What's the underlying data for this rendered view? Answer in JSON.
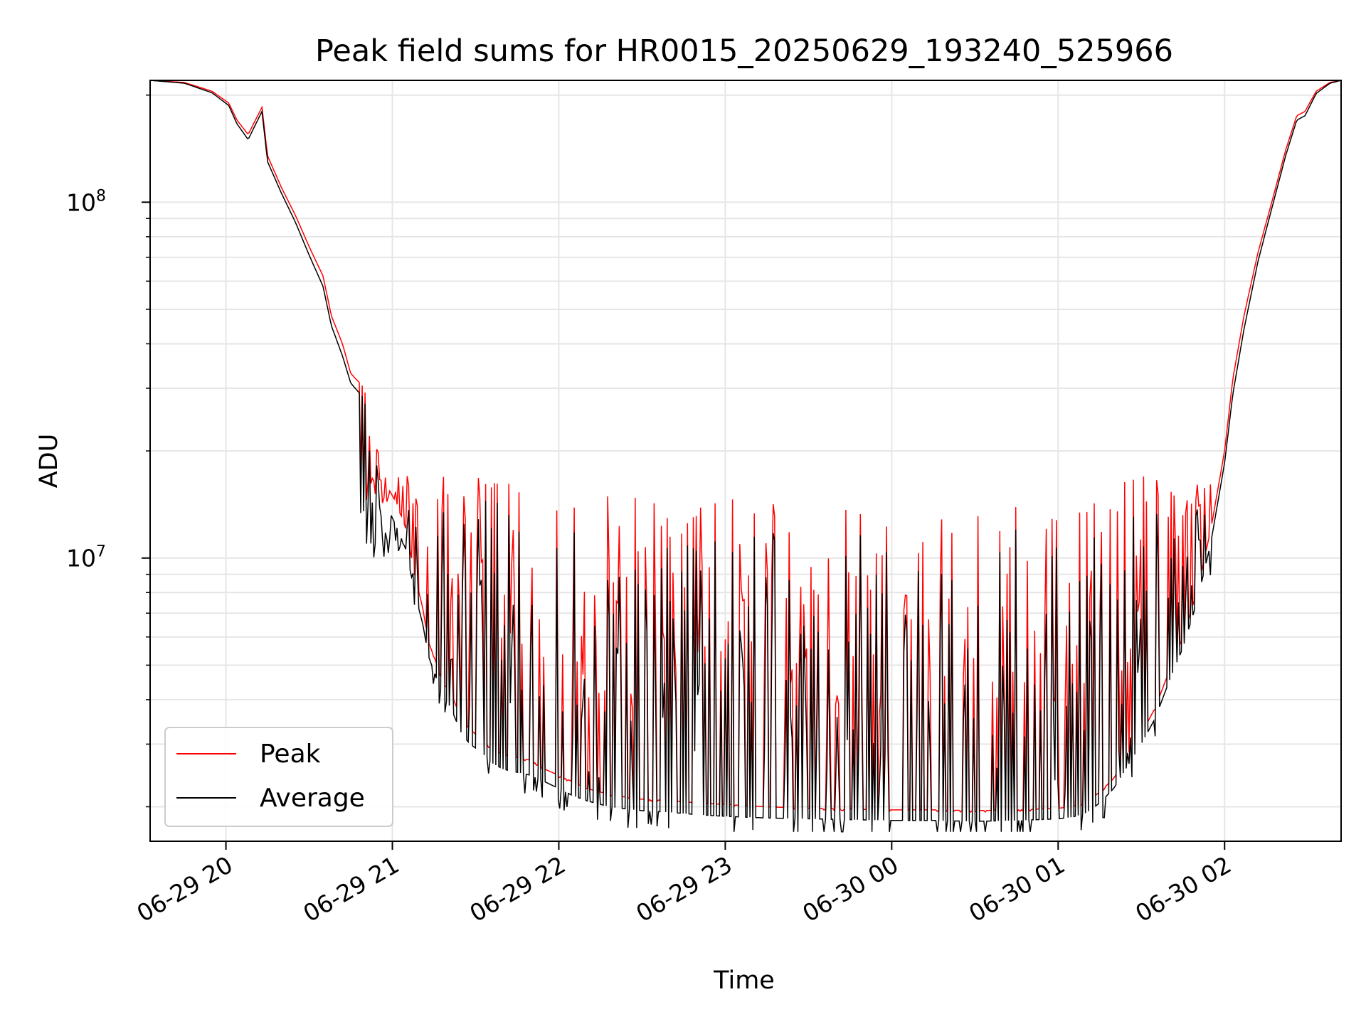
{
  "chart_data": {
    "type": "line",
    "title": "Peak field sums for HR0015_20250629_193240_525966",
    "xlabel": "Time",
    "ylabel": "ADU",
    "y_scale": "log",
    "ylim": [
      1600000,
      220000000
    ],
    "xlim": [
      "06-29 19:32:40",
      "06-30 02:42:00"
    ],
    "grid": true,
    "legend_position": "lower-left",
    "x_ticks": [
      "06-29 20",
      "06-29 21",
      "06-29 22",
      "06-29 23",
      "06-30 00",
      "06-30 01",
      "06-30 02"
    ],
    "y_ticks": [
      "10^8",
      "10^7"
    ],
    "series": [
      {
        "name": "Peak",
        "color": "#ff0000",
        "points": [
          [
            "06-29 19:32:40",
            220000000
          ],
          [
            "06-29 19:45",
            217000000
          ],
          [
            "06-29 19:55",
            205000000
          ],
          [
            "06-29 20:01",
            190000000
          ],
          [
            "06-29 20:04",
            170000000
          ],
          [
            "06-29 20:08",
            155000000
          ],
          [
            "06-29 20:13",
            185000000
          ],
          [
            "06-29 20:15",
            135000000
          ],
          [
            "06-29 20:20",
            110000000
          ],
          [
            "06-29 20:25",
            92000000
          ],
          [
            "06-29 20:30",
            75000000
          ],
          [
            "06-29 20:35",
            62000000
          ],
          [
            "06-29 20:38",
            48000000
          ],
          [
            "06-29 20:42",
            40000000
          ],
          [
            "06-29 20:45",
            33000000
          ],
          [
            "06-29 20:50",
            30000000
          ],
          [
            "06-29 20:52",
            21000000
          ],
          [
            "06-29 20:55",
            20000000
          ],
          [
            "06-29 20:58",
            16000000
          ],
          [
            "06-29 21:02",
            14000000
          ],
          [
            "06-29 21:05",
            12000000
          ],
          [
            "06-29 21:08",
            9000000
          ],
          [
            "06-29 21:11",
            7200000
          ],
          [
            "06-29 21:13",
            5800000
          ],
          [
            "06-29 21:15",
            5300000
          ],
          [
            "06-29 21:18",
            4500000
          ],
          [
            "06-29 21:21",
            4200000
          ],
          [
            "06-29 21:25",
            3500000
          ],
          [
            "06-29 21:28",
            3300000
          ],
          [
            "06-29 21:32",
            3100000
          ],
          [
            "06-29 21:36",
            2900000
          ],
          [
            "06-29 21:40",
            2800000
          ],
          [
            "06-29 21:45",
            2750000
          ],
          [
            "06-29 21:50",
            2700000
          ],
          [
            "06-29 21:55",
            2550000
          ],
          [
            "06-29 22:00",
            2450000
          ],
          [
            "06-29 22:05",
            2350000
          ],
          [
            "06-29 22:10",
            2250000
          ],
          [
            "06-29 22:15",
            2200000
          ],
          [
            "06-29 22:20",
            2150000
          ],
          [
            "06-29 22:30",
            2100000
          ],
          [
            "06-29 22:40",
            2080000
          ],
          [
            "06-29 22:50",
            2050000
          ],
          [
            "06-29 23:00",
            2030000
          ],
          [
            "06-29 23:15",
            2000000
          ],
          [
            "06-29 23:30",
            1980000
          ],
          [
            "06-29 23:45",
            1970000
          ],
          [
            "06-30 00:00",
            1960000
          ],
          [
            "06-30 00:15",
            1960000
          ],
          [
            "06-30 00:30",
            1950000
          ],
          [
            "06-30 00:45",
            1960000
          ],
          [
            "06-30 01:00",
            1980000
          ],
          [
            "06-30 01:05",
            2000000
          ],
          [
            "06-30 01:10",
            2050000
          ],
          [
            "06-30 01:15",
            2200000
          ],
          [
            "06-30 01:20",
            2400000
          ],
          [
            "06-30 01:25",
            2800000
          ],
          [
            "06-30 01:30",
            3200000
          ],
          [
            "06-30 01:35",
            3800000
          ],
          [
            "06-30 01:40",
            4800000
          ],
          [
            "06-30 01:45",
            6000000
          ],
          [
            "06-30 01:50",
            8000000
          ],
          [
            "06-30 01:55",
            12000000
          ],
          [
            "06-30 02:00",
            20000000
          ],
          [
            "06-30 02:03",
            32000000
          ],
          [
            "06-30 02:07",
            48000000
          ],
          [
            "06-30 02:12",
            72000000
          ],
          [
            "06-30 02:17",
            100000000
          ],
          [
            "06-30 02:22",
            140000000
          ],
          [
            "06-30 02:26",
            175000000
          ],
          [
            "06-30 02:29",
            180000000
          ],
          [
            "06-30 02:33",
            205000000
          ],
          [
            "06-30 02:38",
            217000000
          ],
          [
            "06-30 02:42",
            220000000
          ]
        ]
      },
      {
        "name": "Average",
        "color": "#000000",
        "points": [
          [
            "06-29 19:32:40",
            220000000
          ],
          [
            "06-29 19:45",
            216000000
          ],
          [
            "06-29 19:55",
            203000000
          ],
          [
            "06-29 20:01",
            187000000
          ],
          [
            "06-29 20:04",
            166000000
          ],
          [
            "06-29 20:08",
            150000000
          ],
          [
            "06-29 20:13",
            180000000
          ],
          [
            "06-29 20:15",
            130000000
          ],
          [
            "06-29 20:20",
            106000000
          ],
          [
            "06-29 20:25",
            88000000
          ],
          [
            "06-29 20:30",
            71000000
          ],
          [
            "06-29 20:35",
            58000000
          ],
          [
            "06-29 20:38",
            45000000
          ],
          [
            "06-29 20:42",
            37000000
          ],
          [
            "06-29 20:45",
            31000000
          ],
          [
            "06-29 20:50",
            28000000
          ],
          [
            "06-29 20:52",
            19000000
          ],
          [
            "06-29 20:55",
            18000000
          ],
          [
            "06-29 20:58",
            14000000
          ],
          [
            "06-29 21:02",
            12000000
          ],
          [
            "06-29 21:05",
            10500000
          ],
          [
            "06-29 21:08",
            8000000
          ],
          [
            "06-29 21:11",
            6500000
          ],
          [
            "06-29 21:13",
            5300000
          ],
          [
            "06-29 21:15",
            4800000
          ],
          [
            "06-29 21:18",
            4100000
          ],
          [
            "06-29 21:21",
            3800000
          ],
          [
            "06-29 21:25",
            3200000
          ],
          [
            "06-29 21:28",
            3000000
          ],
          [
            "06-29 21:32",
            2850000
          ],
          [
            "06-29 21:36",
            2650000
          ],
          [
            "06-29 21:40",
            2550000
          ],
          [
            "06-29 21:45",
            2500000
          ],
          [
            "06-29 21:50",
            2450000
          ],
          [
            "06-29 21:55",
            2350000
          ],
          [
            "06-29 22:00",
            2250000
          ],
          [
            "06-29 22:05",
            2150000
          ],
          [
            "06-29 22:10",
            2080000
          ],
          [
            "06-29 22:15",
            2030000
          ],
          [
            "06-29 22:20",
            1990000
          ],
          [
            "06-29 22:30",
            1950000
          ],
          [
            "06-29 22:40",
            1930000
          ],
          [
            "06-29 22:50",
            1900000
          ],
          [
            "06-29 23:00",
            1880000
          ],
          [
            "06-29 23:15",
            1860000
          ],
          [
            "06-29 23:30",
            1850000
          ],
          [
            "06-29 23:45",
            1840000
          ],
          [
            "06-30 00:00",
            1830000
          ],
          [
            "06-30 00:15",
            1830000
          ],
          [
            "06-30 00:30",
            1820000
          ],
          [
            "06-30 00:45",
            1830000
          ],
          [
            "06-30 01:00",
            1850000
          ],
          [
            "06-30 01:05",
            1870000
          ],
          [
            "06-30 01:10",
            1920000
          ],
          [
            "06-30 01:15",
            2050000
          ],
          [
            "06-30 01:20",
            2250000
          ],
          [
            "06-30 01:25",
            2600000
          ],
          [
            "06-30 01:30",
            3000000
          ],
          [
            "06-30 01:35",
            3550000
          ],
          [
            "06-30 01:40",
            4500000
          ],
          [
            "06-30 01:45",
            5600000
          ],
          [
            "06-30 01:50",
            7500000
          ],
          [
            "06-30 01:55",
            11000000
          ],
          [
            "06-30 02:00",
            18500000
          ],
          [
            "06-30 02:03",
            29000000
          ],
          [
            "06-30 02:07",
            44000000
          ],
          [
            "06-30 02:12",
            68000000
          ],
          [
            "06-30 02:17",
            96000000
          ],
          [
            "06-30 02:22",
            135000000
          ],
          [
            "06-30 02:26",
            170000000
          ],
          [
            "06-30 02:29",
            175000000
          ],
          [
            "06-30 02:33",
            202000000
          ],
          [
            "06-30 02:38",
            216000000
          ],
          [
            "06-30 02:42",
            220000000
          ]
        ]
      }
    ],
    "spikes": {
      "window": [
        "06-29 20:48",
        "06-30 01:55"
      ],
      "peak_max": [
        14000000,
        17000000
      ],
      "avg_min": 1700000
    }
  }
}
